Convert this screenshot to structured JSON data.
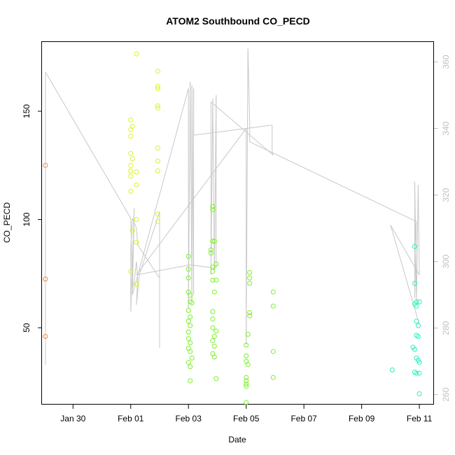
{
  "chart_data": {
    "type": "scatter",
    "title": "ATOM2 Southbound CO_PECD",
    "xlabel": "Date",
    "ylabel": "CO_PECD",
    "x_unit": "date",
    "xlim": [
      "2020-01-28T22:13",
      "2020-02-11T12:10"
    ],
    "ylim": [
      14.5,
      182
    ],
    "y2lim": [
      257,
      366
    ],
    "x_ticks": [
      {
        "label": "Jan 30",
        "value": "2020-01-30T00:00"
      },
      {
        "label": "Feb 01",
        "value": "2020-02-01T00:00"
      },
      {
        "label": "Feb 03",
        "value": "2020-02-03T00:00"
      },
      {
        "label": "Feb 05",
        "value": "2020-02-05T00:00"
      },
      {
        "label": "Feb 07",
        "value": "2020-02-07T00:00"
      },
      {
        "label": "Feb 09",
        "value": "2020-02-09T00:00"
      },
      {
        "label": "Feb 11",
        "value": "2020-02-11T00:00"
      }
    ],
    "y_ticks": [
      "50",
      "100",
      "150"
    ],
    "y2_ticks": [
      "260",
      "280",
      "300",
      "320",
      "340",
      "360"
    ],
    "grid": false,
    "legend": "none",
    "colors": {
      "points_jan29": "#f08a3c",
      "points_feb01": "#ddf02a",
      "points_feb03_05": "#7cf02a",
      "points_feb10_11": "#2af0c0",
      "secondary_line": "#c8c8c8"
    },
    "series": [
      {
        "color": "#f08a3c",
        "points": [
          [
            "2020-01-29T01:04",
            125
          ],
          [
            "2020-01-29T01:04",
            72.5
          ],
          [
            "2020-01-29T01:04",
            46
          ]
        ]
      },
      {
        "color": "#ddf02a",
        "points": [
          [
            "2020-02-01T04:43",
            176.5
          ],
          [
            "2020-02-01T00:00",
            146
          ],
          [
            "2020-02-01T01:26",
            143
          ],
          [
            "2020-02-01T00:00",
            141.5
          ],
          [
            "2020-02-01T00:00",
            138.5
          ],
          [
            "2020-02-01T01:26",
            128
          ],
          [
            "2020-02-01T00:00",
            130.5
          ],
          [
            "2020-02-01T00:00",
            125
          ],
          [
            "2020-02-01T00:00",
            122.5
          ],
          [
            "2020-02-01T04:43",
            122
          ],
          [
            "2020-02-01T00:00",
            120
          ],
          [
            "2020-02-01T04:43",
            116
          ],
          [
            "2020-02-01T00:00",
            113
          ],
          [
            "2020-02-01T04:43",
            100
          ],
          [
            "2020-02-01T01:26",
            95
          ],
          [
            "2020-02-01T04:43",
            89.5
          ],
          [
            "2020-02-01T00:00",
            76
          ],
          [
            "2020-02-01T04:43",
            70
          ],
          [
            "2020-02-01T22:29",
            168.5
          ],
          [
            "2020-02-01T22:29",
            161.5
          ],
          [
            "2020-02-01T22:29",
            160.5
          ],
          [
            "2020-02-01T22:29",
            152.5
          ],
          [
            "2020-02-01T22:29",
            151.5
          ],
          [
            "2020-02-01T22:29",
            133
          ],
          [
            "2020-02-01T22:29",
            127
          ],
          [
            "2020-02-01T22:29",
            122.5
          ],
          [
            "2020-02-01T22:29",
            102.5
          ],
          [
            "2020-02-01T22:29",
            99
          ]
        ]
      },
      {
        "color": "#7cf02a",
        "points": [
          [
            "2020-02-03T00:00",
            83
          ],
          [
            "2020-02-03T00:00",
            77
          ],
          [
            "2020-02-03T00:00",
            73
          ],
          [
            "2020-02-03T00:00",
            66.5
          ],
          [
            "2020-02-03T01:26",
            65
          ],
          [
            "2020-02-03T01:26",
            62
          ],
          [
            "2020-02-03T02:53",
            61.5
          ],
          [
            "2020-02-03T00:00",
            58
          ],
          [
            "2020-02-03T01:26",
            55
          ],
          [
            "2020-02-03T00:00",
            53
          ],
          [
            "2020-02-03T01:26",
            51
          ],
          [
            "2020-02-03T00:00",
            48
          ],
          [
            "2020-02-03T00:00",
            45
          ],
          [
            "2020-02-03T01:26",
            43
          ],
          [
            "2020-02-03T00:00",
            40.5
          ],
          [
            "2020-02-03T01:26",
            39
          ],
          [
            "2020-02-03T02:53",
            36
          ],
          [
            "2020-02-03T00:00",
            34
          ],
          [
            "2020-02-03T01:26",
            32
          ],
          [
            "2020-02-03T01:26",
            25.5
          ],
          [
            "2020-02-03T20:10",
            106
          ],
          [
            "2020-02-03T20:10",
            104.5
          ],
          [
            "2020-02-03T20:10",
            90
          ],
          [
            "2020-02-03T21:36",
            90
          ],
          [
            "2020-02-03T18:43",
            86
          ],
          [
            "2020-02-03T18:43",
            84.5
          ],
          [
            "2020-02-03T20:10",
            78
          ],
          [
            "2020-02-03T23:02",
            79.5
          ],
          [
            "2020-02-03T20:10",
            76
          ],
          [
            "2020-02-03T20:10",
            72
          ],
          [
            "2020-02-03T23:02",
            72
          ],
          [
            "2020-02-03T21:36",
            66.5
          ],
          [
            "2020-02-03T20:10",
            57.5
          ],
          [
            "2020-02-03T20:10",
            54
          ],
          [
            "2020-02-03T20:10",
            50
          ],
          [
            "2020-02-03T23:02",
            48.5
          ],
          [
            "2020-02-03T21:36",
            46
          ],
          [
            "2020-02-03T20:10",
            44
          ],
          [
            "2020-02-03T21:36",
            41.5
          ],
          [
            "2020-02-03T20:10",
            38
          ],
          [
            "2020-02-03T21:36",
            36.5
          ],
          [
            "2020-02-03T23:02",
            26.5
          ],
          [
            "2020-02-05T02:53",
            75.5
          ],
          [
            "2020-02-05T02:53",
            73
          ],
          [
            "2020-02-05T02:53",
            70.5
          ],
          [
            "2020-02-05T02:53",
            57
          ],
          [
            "2020-02-05T02:53",
            55.5
          ],
          [
            "2020-02-05T01:26",
            47
          ],
          [
            "2020-02-05T00:00",
            42
          ],
          [
            "2020-02-05T00:00",
            37
          ],
          [
            "2020-02-05T00:00",
            34.5
          ],
          [
            "2020-02-05T01:26",
            33
          ],
          [
            "2020-02-05T00:00",
            27
          ],
          [
            "2020-02-05T00:00",
            25.5
          ],
          [
            "2020-02-05T00:00",
            24
          ],
          [
            "2020-02-05T00:00",
            23
          ],
          [
            "2020-02-05T00:00",
            15.5
          ],
          [
            "2020-02-05T22:29",
            66.5
          ],
          [
            "2020-02-05T22:29",
            60
          ],
          [
            "2020-02-05T22:29",
            39
          ],
          [
            "2020-02-05T22:29",
            27
          ]
        ]
      },
      {
        "color": "#2af0c0",
        "points": [
          [
            "2020-02-10T01:26",
            30.5
          ],
          [
            "2020-02-10T20:10",
            87.5
          ],
          [
            "2020-02-10T20:10",
            70.5
          ],
          [
            "2020-02-10T21:36",
            62
          ],
          [
            "2020-02-11T00:00",
            62
          ],
          [
            "2020-02-10T20:10",
            61
          ],
          [
            "2020-02-10T21:36",
            60
          ],
          [
            "2020-02-10T21:36",
            53
          ],
          [
            "2020-02-10T23:02",
            51
          ],
          [
            "2020-02-10T21:36",
            46.5
          ],
          [
            "2020-02-10T23:02",
            46
          ],
          [
            "2020-02-10T18:43",
            41
          ],
          [
            "2020-02-10T20:10",
            40
          ],
          [
            "2020-02-10T21:36",
            36
          ],
          [
            "2020-02-10T23:02",
            35
          ],
          [
            "2020-02-11T00:00",
            34
          ],
          [
            "2020-02-10T20:10",
            29.5
          ],
          [
            "2020-02-10T21:36",
            29
          ],
          [
            "2020-02-11T00:00",
            29
          ],
          [
            "2020-02-11T00:00",
            19.5
          ]
        ]
      }
    ],
    "secondary_series": {
      "color": "#c8c8c8",
      "points": [
        [
          "2020-01-29T01:04",
          269
        ],
        [
          "2020-01-29T01:04",
          357
        ],
        [
          "2020-02-01T00:00",
          313
        ],
        [
          "2020-02-01T01:26",
          292
        ],
        [
          "2020-02-01T02:53",
          294
        ],
        [
          "2020-02-01T04:43",
          300
        ],
        [
          "2020-02-01T05:46",
          295
        ],
        [
          "2020-02-01T04:43",
          287
        ],
        [
          "2020-02-01T07:12",
          296
        ],
        [
          "2020-02-02T00:00",
          315
        ],
        [
          "2020-02-02T00:00",
          274
        ],
        [
          "2020-02-02T00:00",
          295
        ],
        [
          "2020-02-01T05:46",
          305
        ],
        [
          "2020-02-01T04:43",
          310
        ],
        [
          "2020-02-01T01:26",
          313
        ],
        [
          "2020-02-01T00:00",
          304
        ],
        [
          "2020-02-01T00:00",
          285
        ],
        [
          "2020-02-01T02:53",
          316
        ],
        [
          "2020-02-01T01:26",
          290
        ],
        [
          "2020-02-03T00:00",
          352
        ],
        [
          "2020-02-03T00:00",
          286
        ],
        [
          "2020-02-03T01:26",
          354
        ],
        [
          "2020-02-03T02:53",
          288
        ],
        [
          "2020-02-03T02:53",
          353
        ],
        [
          "2020-02-03T04:19",
          290
        ],
        [
          "2020-02-03T04:19",
          352
        ],
        [
          "2020-02-03T04:19",
          338
        ],
        [
          "2020-02-05T21:36",
          341
        ],
        [
          "2020-02-05T21:36",
          333
        ],
        [
          "2020-02-05T22:29",
          332
        ],
        [
          "2020-02-03T18:43",
          348
        ],
        [
          "2020-02-03T18:43",
          296
        ],
        [
          "2020-02-03T20:10",
          349
        ],
        [
          "2020-02-03T21:36",
          297
        ],
        [
          "2020-02-03T23:02",
          350
        ],
        [
          "2020-02-03T23:02",
          298
        ],
        [
          "2020-02-03T01:26",
          299
        ],
        [
          "2020-02-01T04:43",
          296
        ],
        [
          "2020-02-05T00:00",
          340
        ],
        [
          "2020-02-05T00:00",
          275
        ],
        [
          "2020-02-05T01:26",
          364
        ],
        [
          "2020-02-05T02:53",
          342
        ],
        [
          "2020-02-05T02:53",
          336
        ],
        [
          "2020-02-10T21:36",
          312
        ],
        [
          "2020-02-10T20:10",
          289
        ],
        [
          "2020-02-10T20:10",
          324
        ],
        [
          "2020-02-10T21:36",
          288
        ],
        [
          "2020-02-10T23:02",
          323
        ],
        [
          "2020-02-11T00:00",
          296
        ],
        [
          "2020-02-10T00:00",
          311
        ],
        [
          "2020-02-11T00:00",
          281
        ]
      ]
    }
  }
}
